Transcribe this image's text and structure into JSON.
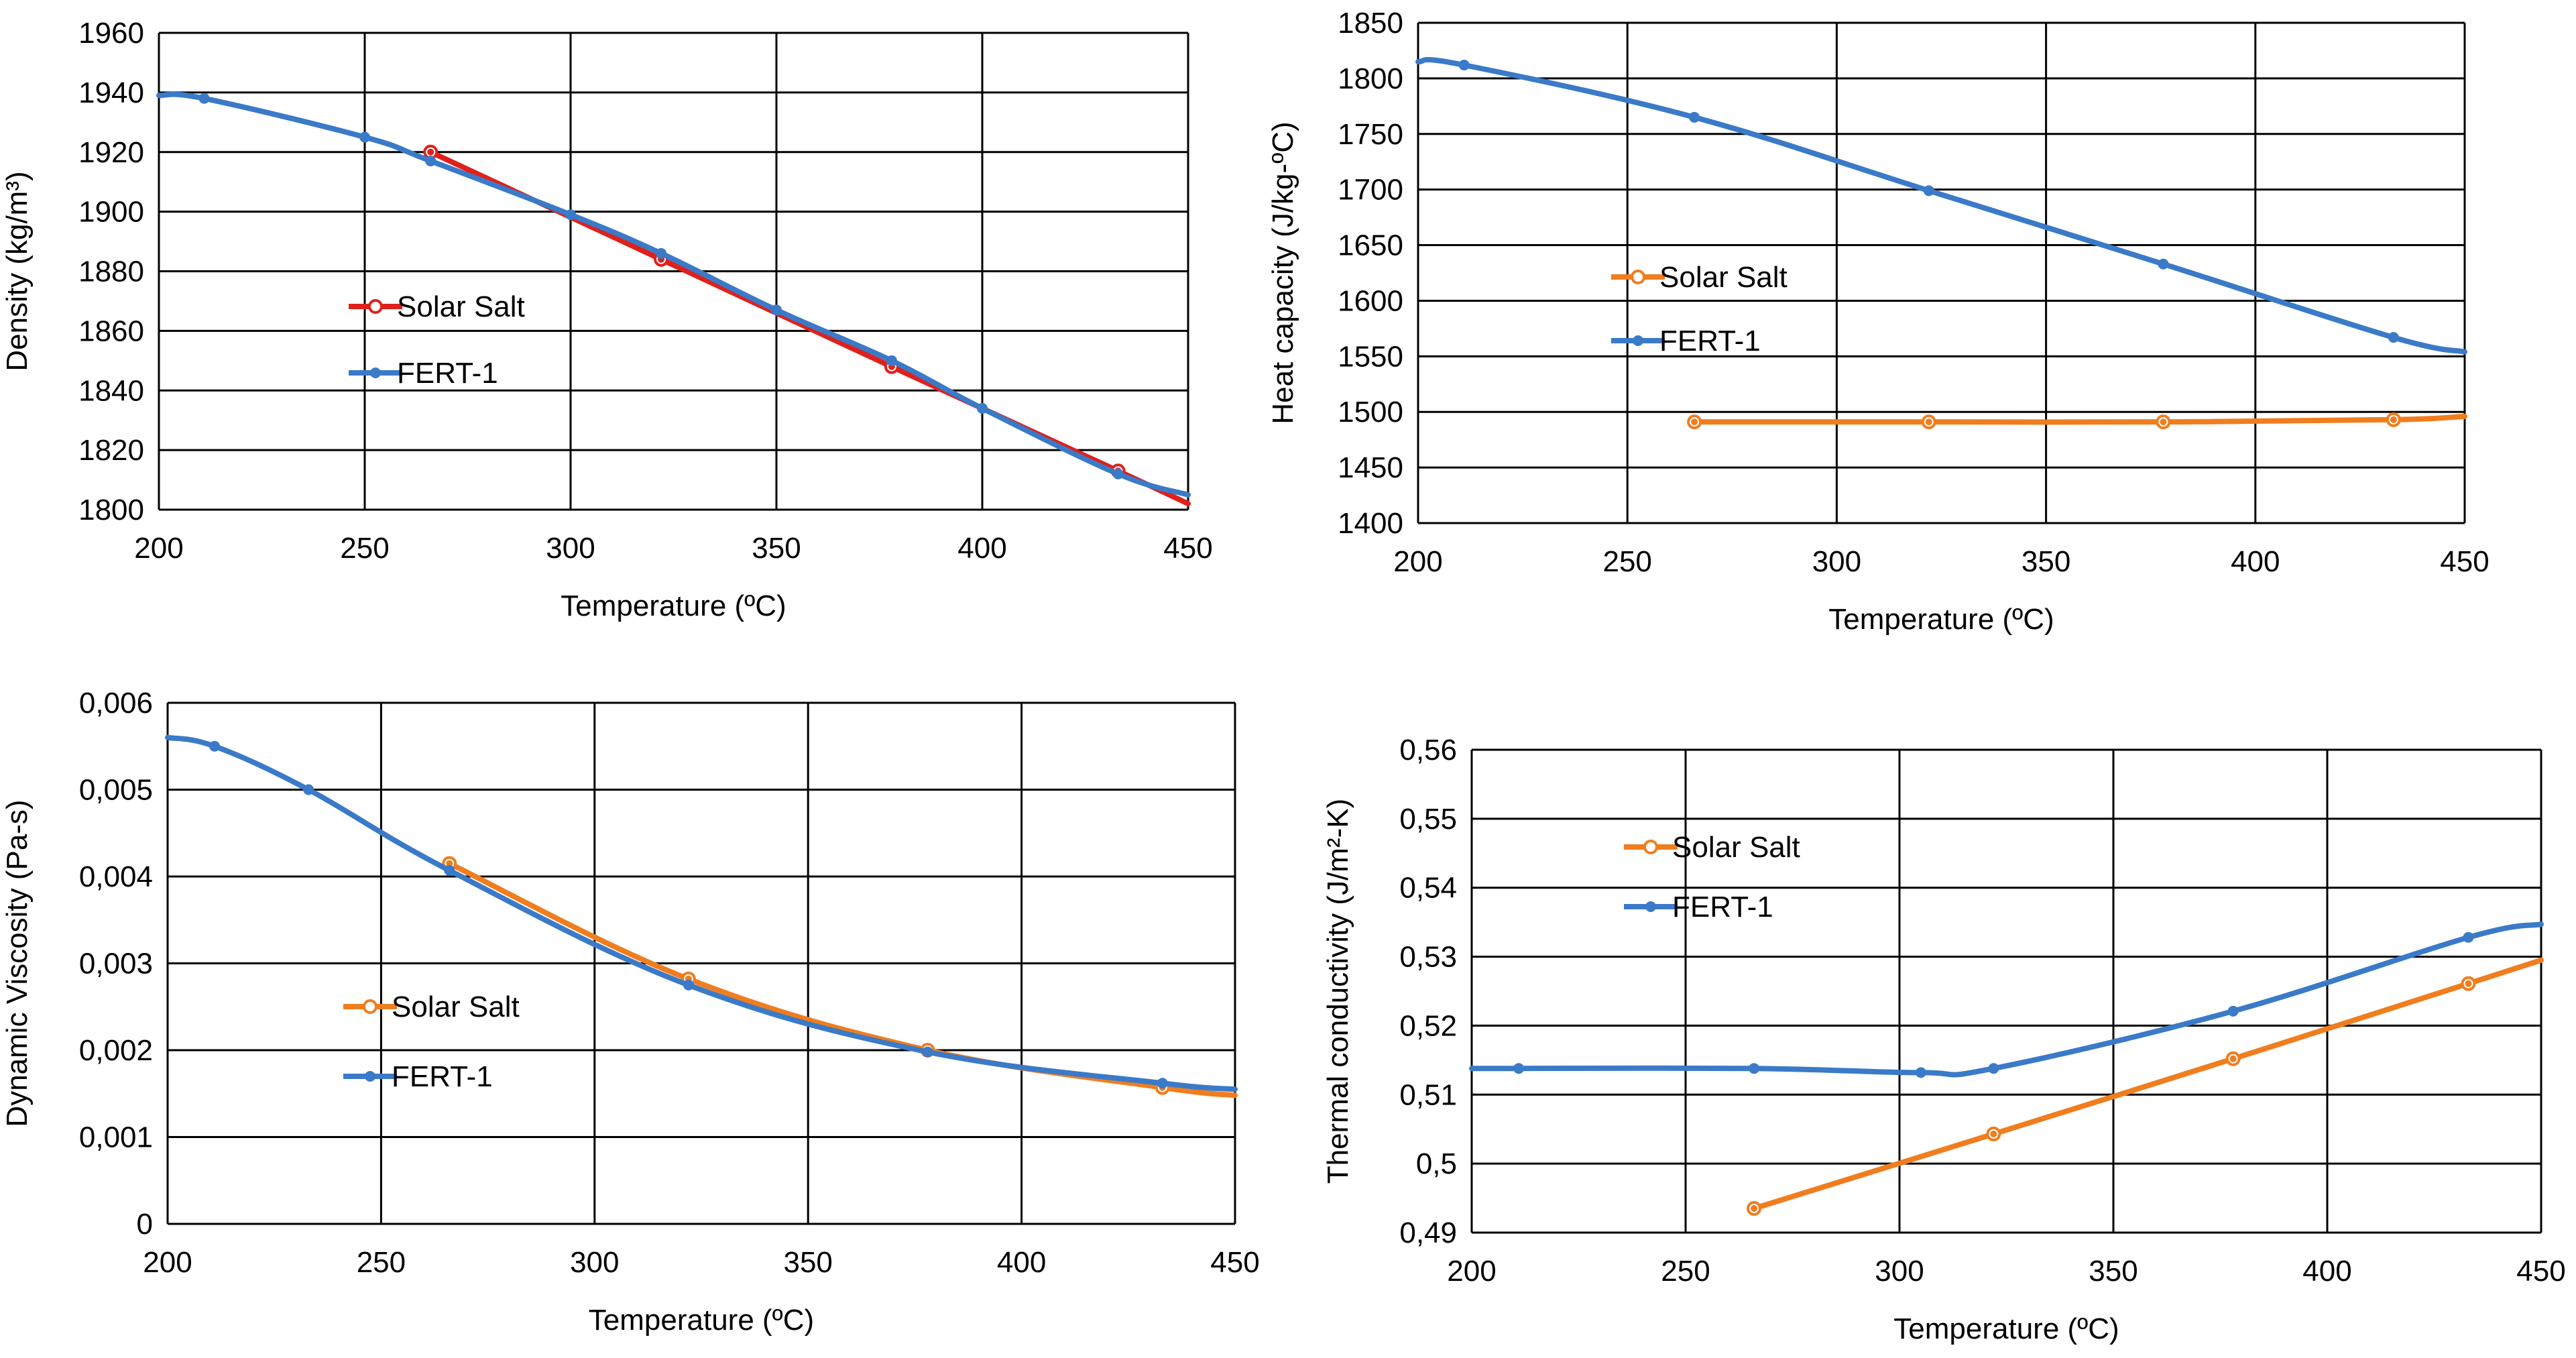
{
  "colors": {
    "solar_red": "#e0201b",
    "solar_orange": "#f07d1e",
    "fert_blue": "#3a7ac8",
    "grid": "#000000"
  },
  "chart_data": [
    {
      "type": "line",
      "title": "",
      "xlabel": "Temperature (ºC)",
      "ylabel": "Density (kg/m³)",
      "xlim": [
        200,
        450
      ],
      "ylim": [
        1800,
        1960
      ],
      "xticks": [
        "200",
        "250",
        "300",
        "350",
        "400",
        "450"
      ],
      "yticks": [
        "1800",
        "1820",
        "1840",
        "1860",
        "1880",
        "1900",
        "1920",
        "1940",
        "1960"
      ],
      "grid": true,
      "legend": "center-left",
      "series": [
        {
          "name": "Solar Salt",
          "color": "#e0201b",
          "marker": "circle",
          "x": [
            266,
            322,
            378,
            433,
            450
          ],
          "y": [
            1920,
            1884,
            1848,
            1813,
            1802
          ]
        },
        {
          "name": "FERT-1",
          "color": "#3a7ac8",
          "marker": "dot",
          "x": [
            200,
            211,
            250,
            266,
            300,
            322,
            350,
            378,
            400,
            433,
            450
          ],
          "y": [
            1939,
            1938,
            1925,
            1917,
            1899,
            1886,
            1867,
            1850,
            1834,
            1812,
            1805
          ]
        }
      ]
    },
    {
      "type": "line",
      "title": "",
      "xlabel": "Temperature (ºC)",
      "ylabel": "Heat capacity (J/kg-ºC)",
      "xlim": [
        200,
        450
      ],
      "ylim": [
        1400,
        1850
      ],
      "xticks": [
        "200",
        "250",
        "300",
        "350",
        "400",
        "450"
      ],
      "yticks": [
        "1400",
        "1450",
        "1500",
        "1550",
        "1600",
        "1650",
        "1700",
        "1750",
        "1800",
        "1850"
      ],
      "grid": true,
      "legend": "center-left",
      "series": [
        {
          "name": "Solar Salt",
          "color": "#f07d1e",
          "marker": "circle",
          "x": [
            266,
            322,
            378,
            433,
            450
          ],
          "y": [
            1491,
            1491,
            1491,
            1493,
            1496
          ]
        },
        {
          "name": "FERT-1",
          "color": "#3a7ac8",
          "marker": "dot",
          "x": [
            200,
            211,
            266,
            322,
            378,
            433,
            450
          ],
          "y": [
            1815,
            1812,
            1765,
            1699,
            1633,
            1567,
            1554
          ]
        }
      ]
    },
    {
      "type": "line",
      "title": "",
      "xlabel": "Temperature (ºC)",
      "ylabel": "Dynamic Viscosity (Pa-s)",
      "xlim": [
        200,
        450
      ],
      "ylim": [
        0,
        0.006
      ],
      "xticks": [
        "200",
        "250",
        "300",
        "350",
        "400",
        "450"
      ],
      "yticks": [
        "0",
        "0,001",
        "0,002",
        "0,003",
        "0,004",
        "0,005",
        "0,006"
      ],
      "grid": true,
      "legend": "center-left",
      "series": [
        {
          "name": "Solar Salt",
          "color": "#f07d1e",
          "marker": "circle",
          "x": [
            266,
            322,
            378,
            433,
            450
          ],
          "y": [
            0.00415,
            0.00282,
            0.002,
            0.00157,
            0.00148
          ]
        },
        {
          "name": "FERT-1",
          "color": "#3a7ac8",
          "marker": "dot",
          "x": [
            200,
            211,
            233,
            266,
            322,
            378,
            433,
            450
          ],
          "y": [
            0.0056,
            0.0055,
            0.005,
            0.00407,
            0.00275,
            0.00198,
            0.00162,
            0.00155
          ]
        }
      ]
    },
    {
      "type": "line",
      "title": "",
      "xlabel": "Temperature (ºC)",
      "ylabel": "Thermal conductivity (J/m²-K)",
      "xlim": [
        200,
        450
      ],
      "ylim": [
        0.49,
        0.56
      ],
      "xticks": [
        "200",
        "250",
        "300",
        "350",
        "400",
        "450"
      ],
      "yticks": [
        "0,49",
        "0,5",
        "0,51",
        "0,52",
        "0,53",
        "0,54",
        "0,55",
        "0,56"
      ],
      "grid": true,
      "legend": "top-left",
      "series": [
        {
          "name": "Solar Salt",
          "color": "#f07d1e",
          "marker": "circle",
          "x": [
            266,
            322,
            378,
            433,
            450
          ],
          "y": [
            0.4935,
            0.5043,
            0.5152,
            0.5261,
            0.5295
          ]
        },
        {
          "name": "FERT-1",
          "color": "#3a7ac8",
          "marker": "dot",
          "x": [
            200,
            211,
            266,
            305,
            322,
            378,
            433,
            450
          ],
          "y": [
            0.5138,
            0.5138,
            0.5138,
            0.5132,
            0.5138,
            0.5221,
            0.5328,
            0.5347
          ]
        }
      ]
    }
  ]
}
